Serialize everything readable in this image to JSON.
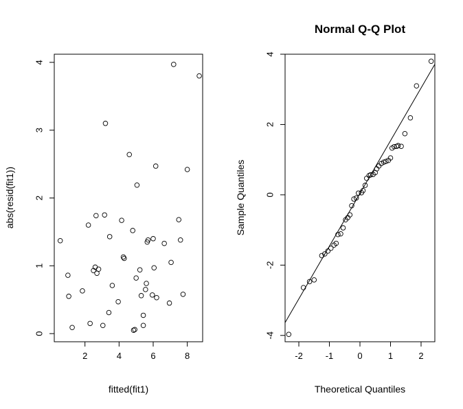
{
  "chart_data": [
    {
      "type": "scatter",
      "title": "",
      "xlabel": "fitted(fit1)",
      "ylabel": "abs(resid(fit1))",
      "xlim": [
        0.2,
        8.9
      ],
      "ylim": [
        -0.12,
        4.12
      ],
      "xticks": [
        "2",
        "4",
        "6",
        "8"
      ],
      "xtick_values": [
        2,
        4,
        6,
        8
      ],
      "yticks": [
        "0",
        "1",
        "2",
        "3",
        "4"
      ],
      "ytick_values": [
        0,
        1,
        2,
        3,
        4
      ],
      "points": [
        [
          0.55,
          1.37
        ],
        [
          1.0,
          0.86
        ],
        [
          1.05,
          0.55
        ],
        [
          1.25,
          0.09
        ],
        [
          1.85,
          0.63
        ],
        [
          2.2,
          1.6
        ],
        [
          2.3,
          0.15
        ],
        [
          2.5,
          0.93
        ],
        [
          2.6,
          0.98
        ],
        [
          2.65,
          1.74
        ],
        [
          2.7,
          0.89
        ],
        [
          2.8,
          0.95
        ],
        [
          3.05,
          0.12
        ],
        [
          3.15,
          1.75
        ],
        [
          3.2,
          3.1
        ],
        [
          3.4,
          0.31
        ],
        [
          3.45,
          1.43
        ],
        [
          3.6,
          0.71
        ],
        [
          3.95,
          0.47
        ],
        [
          4.15,
          1.67
        ],
        [
          4.25,
          1.13
        ],
        [
          4.3,
          1.11
        ],
        [
          4.6,
          2.64
        ],
        [
          4.8,
          1.52
        ],
        [
          4.85,
          0.05
        ],
        [
          4.92,
          0.06
        ],
        [
          5.0,
          0.82
        ],
        [
          5.05,
          2.19
        ],
        [
          5.22,
          0.94
        ],
        [
          5.3,
          0.56
        ],
        [
          5.42,
          0.12
        ],
        [
          5.42,
          0.27
        ],
        [
          5.55,
          0.65
        ],
        [
          5.6,
          0.74
        ],
        [
          5.65,
          1.35
        ],
        [
          5.7,
          1.38
        ],
        [
          5.95,
          0.57
        ],
        [
          6.0,
          1.4
        ],
        [
          6.05,
          0.97
        ],
        [
          6.15,
          2.47
        ],
        [
          6.2,
          0.53
        ],
        [
          6.65,
          1.33
        ],
        [
          6.95,
          0.45
        ],
        [
          7.05,
          1.05
        ],
        [
          7.2,
          3.97
        ],
        [
          7.5,
          1.68
        ],
        [
          7.6,
          1.38
        ],
        [
          7.75,
          0.58
        ],
        [
          8.0,
          2.42
        ],
        [
          8.7,
          3.8
        ]
      ]
    },
    {
      "type": "scatter",
      "title": "Normal Q-Q Plot",
      "xlabel": "Theoretical Quantiles",
      "ylabel": "Sample Quantiles",
      "xlim": [
        -2.45,
        2.45
      ],
      "ylim": [
        -4.18,
        4.0
      ],
      "xticks": [
        "-2",
        "-1",
        "0",
        "1",
        "2"
      ],
      "xtick_values": [
        -2,
        -1,
        0,
        1,
        2
      ],
      "yticks": [
        "-4",
        "-2",
        "0",
        "2",
        "4"
      ],
      "ytick_values": [
        -4,
        -2,
        0,
        2,
        4
      ],
      "reference_line": {
        "intercept": 0.04,
        "slope": 1.5
      },
      "points": [
        [
          -2.33,
          -3.97
        ],
        [
          -1.85,
          -2.64
        ],
        [
          -1.65,
          -2.47
        ],
        [
          -1.5,
          -2.42
        ],
        [
          -1.25,
          -1.73
        ],
        [
          -1.15,
          -1.68
        ],
        [
          -1.05,
          -1.6
        ],
        [
          -0.95,
          -1.52
        ],
        [
          -0.85,
          -1.43
        ],
        [
          -0.78,
          -1.38
        ],
        [
          -0.72,
          -1.13
        ],
        [
          -0.63,
          -1.11
        ],
        [
          -0.55,
          -0.94
        ],
        [
          -0.47,
          -0.71
        ],
        [
          -0.4,
          -0.65
        ],
        [
          -0.33,
          -0.57
        ],
        [
          -0.27,
          -0.31
        ],
        [
          -0.2,
          -0.12
        ],
        [
          -0.12,
          -0.09
        ],
        [
          -0.05,
          0.05
        ],
        [
          0.05,
          0.06
        ],
        [
          0.1,
          0.12
        ],
        [
          0.17,
          0.27
        ],
        [
          0.22,
          0.47
        ],
        [
          0.3,
          0.55
        ],
        [
          0.35,
          0.57
        ],
        [
          0.43,
          0.58
        ],
        [
          0.5,
          0.63
        ],
        [
          0.55,
          0.74
        ],
        [
          0.62,
          0.82
        ],
        [
          0.7,
          0.89
        ],
        [
          0.78,
          0.93
        ],
        [
          0.85,
          0.95
        ],
        [
          0.93,
          0.98
        ],
        [
          1.0,
          1.05
        ],
        [
          1.05,
          1.33
        ],
        [
          1.12,
          1.37
        ],
        [
          1.2,
          1.38
        ],
        [
          1.25,
          1.4
        ],
        [
          1.35,
          1.38
        ],
        [
          1.47,
          1.74
        ],
        [
          1.65,
          2.19
        ],
        [
          1.85,
          3.1
        ],
        [
          2.33,
          3.8
        ]
      ]
    }
  ]
}
